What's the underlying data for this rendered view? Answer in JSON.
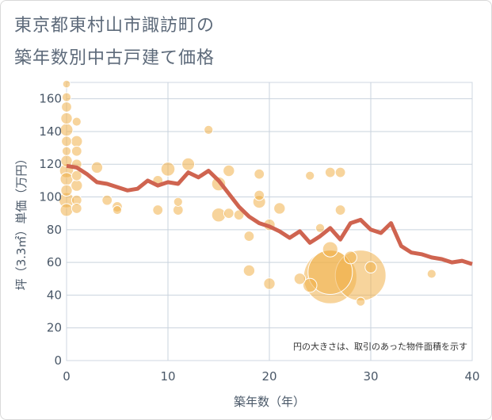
{
  "chart_data": {
    "type": "scatter",
    "title_line1": "東京都東村山市諏訪町の",
    "title_line2": "築年数別中古戸建て価格",
    "xlabel": "築年数（年）",
    "ylabel": "坪（3.3㎡）単価（万円）",
    "note": "円の大きさは、取引のあった物件面積を示す",
    "xlim": [
      0,
      40
    ],
    "ylim": [
      0,
      170
    ],
    "x_ticks": [
      0,
      10,
      20,
      30,
      40
    ],
    "y_ticks": [
      0,
      20,
      40,
      60,
      80,
      100,
      120,
      140,
      160
    ],
    "grid": true,
    "colors": {
      "bubble": "#f0b04a",
      "line": "#cf6450",
      "grid": "#c9d3de",
      "plot_border": "#cfd7e0"
    },
    "bubbles": [
      {
        "x": 0,
        "y": 169,
        "s": 0.6
      },
      {
        "x": 0,
        "y": 161,
        "s": 0.7
      },
      {
        "x": 0,
        "y": 155,
        "s": 0.8
      },
      {
        "x": 0,
        "y": 148,
        "s": 0.9
      },
      {
        "x": 0,
        "y": 141,
        "s": 1.0
      },
      {
        "x": 0,
        "y": 134,
        "s": 0.8
      },
      {
        "x": 0,
        "y": 128,
        "s": 0.7
      },
      {
        "x": 0,
        "y": 122,
        "s": 0.9
      },
      {
        "x": 0,
        "y": 116,
        "s": 1.1
      },
      {
        "x": 0,
        "y": 111,
        "s": 1.0
      },
      {
        "x": 0,
        "y": 104,
        "s": 0.9
      },
      {
        "x": 0,
        "y": 98,
        "s": 1.2
      },
      {
        "x": 0,
        "y": 92,
        "s": 1.0
      },
      {
        "x": 1,
        "y": 146,
        "s": 0.7
      },
      {
        "x": 1,
        "y": 134,
        "s": 0.9
      },
      {
        "x": 1,
        "y": 128,
        "s": 0.8
      },
      {
        "x": 1,
        "y": 120,
        "s": 0.8
      },
      {
        "x": 1,
        "y": 113,
        "s": 0.8
      },
      {
        "x": 1,
        "y": 107,
        "s": 0.9
      },
      {
        "x": 1,
        "y": 98,
        "s": 0.8
      },
      {
        "x": 1,
        "y": 93,
        "s": 0.8
      },
      {
        "x": 3,
        "y": 118,
        "s": 0.9
      },
      {
        "x": 4,
        "y": 98,
        "s": 0.8
      },
      {
        "x": 5,
        "y": 94,
        "s": 0.8
      },
      {
        "x": 5,
        "y": 92,
        "s": 0.7
      },
      {
        "x": 9,
        "y": 110,
        "s": 0.8
      },
      {
        "x": 9,
        "y": 92,
        "s": 0.8
      },
      {
        "x": 10,
        "y": 117,
        "s": 1.1
      },
      {
        "x": 11,
        "y": 97,
        "s": 0.7
      },
      {
        "x": 11,
        "y": 92,
        "s": 0.8
      },
      {
        "x": 12,
        "y": 120,
        "s": 1.0
      },
      {
        "x": 14,
        "y": 141,
        "s": 0.7
      },
      {
        "x": 15,
        "y": 108,
        "s": 1.1
      },
      {
        "x": 15,
        "y": 89,
        "s": 1.1
      },
      {
        "x": 16,
        "y": 116,
        "s": 0.9
      },
      {
        "x": 16,
        "y": 90,
        "s": 0.8
      },
      {
        "x": 17,
        "y": 89,
        "s": 0.8
      },
      {
        "x": 18,
        "y": 76,
        "s": 0.8
      },
      {
        "x": 18,
        "y": 55,
        "s": 0.9
      },
      {
        "x": 19,
        "y": 114,
        "s": 0.8
      },
      {
        "x": 19,
        "y": 101,
        "s": 0.8
      },
      {
        "x": 19,
        "y": 97,
        "s": 1.0
      },
      {
        "x": 20,
        "y": 83,
        "s": 0.9
      },
      {
        "x": 20,
        "y": 47,
        "s": 0.9
      },
      {
        "x": 21,
        "y": 93,
        "s": 0.9
      },
      {
        "x": 23,
        "y": 50,
        "s": 0.9
      },
      {
        "x": 24,
        "y": 113,
        "s": 0.7
      },
      {
        "x": 24,
        "y": 46,
        "s": 1.1
      },
      {
        "x": 25,
        "y": 81,
        "s": 0.7
      },
      {
        "x": 26,
        "y": 115,
        "s": 0.8
      },
      {
        "x": 26,
        "y": 68,
        "s": 1.2
      },
      {
        "x": 26,
        "y": 54,
        "s": 3.5
      },
      {
        "x": 26,
        "y": 51,
        "s": 4.2
      },
      {
        "x": 27,
        "y": 115,
        "s": 0.8
      },
      {
        "x": 27,
        "y": 92,
        "s": 0.8
      },
      {
        "x": 28,
        "y": 63,
        "s": 1.0
      },
      {
        "x": 29,
        "y": 52,
        "s": 4.0
      },
      {
        "x": 29,
        "y": 36,
        "s": 0.7
      },
      {
        "x": 30,
        "y": 57,
        "s": 0.9
      },
      {
        "x": 36,
        "y": 53,
        "s": 0.7
      }
    ],
    "trend": {
      "x": [
        0,
        1,
        2,
        3,
        4,
        5,
        6,
        7,
        8,
        9,
        10,
        11,
        12,
        13,
        14,
        15,
        16,
        17,
        18,
        19,
        20,
        21,
        22,
        23,
        24,
        25,
        26,
        27,
        28,
        29,
        30,
        31,
        32,
        33,
        34,
        35,
        36,
        37,
        38,
        39,
        40
      ],
      "y": [
        119,
        118,
        114,
        109,
        108,
        106,
        104,
        105,
        110,
        107,
        109,
        108,
        115,
        112,
        116,
        110,
        102,
        94,
        88,
        84,
        82,
        79,
        75,
        79,
        72,
        76,
        81,
        74,
        84,
        86,
        80,
        78,
        84,
        70,
        66,
        65,
        63,
        62,
        60,
        61,
        59
      ]
    }
  }
}
